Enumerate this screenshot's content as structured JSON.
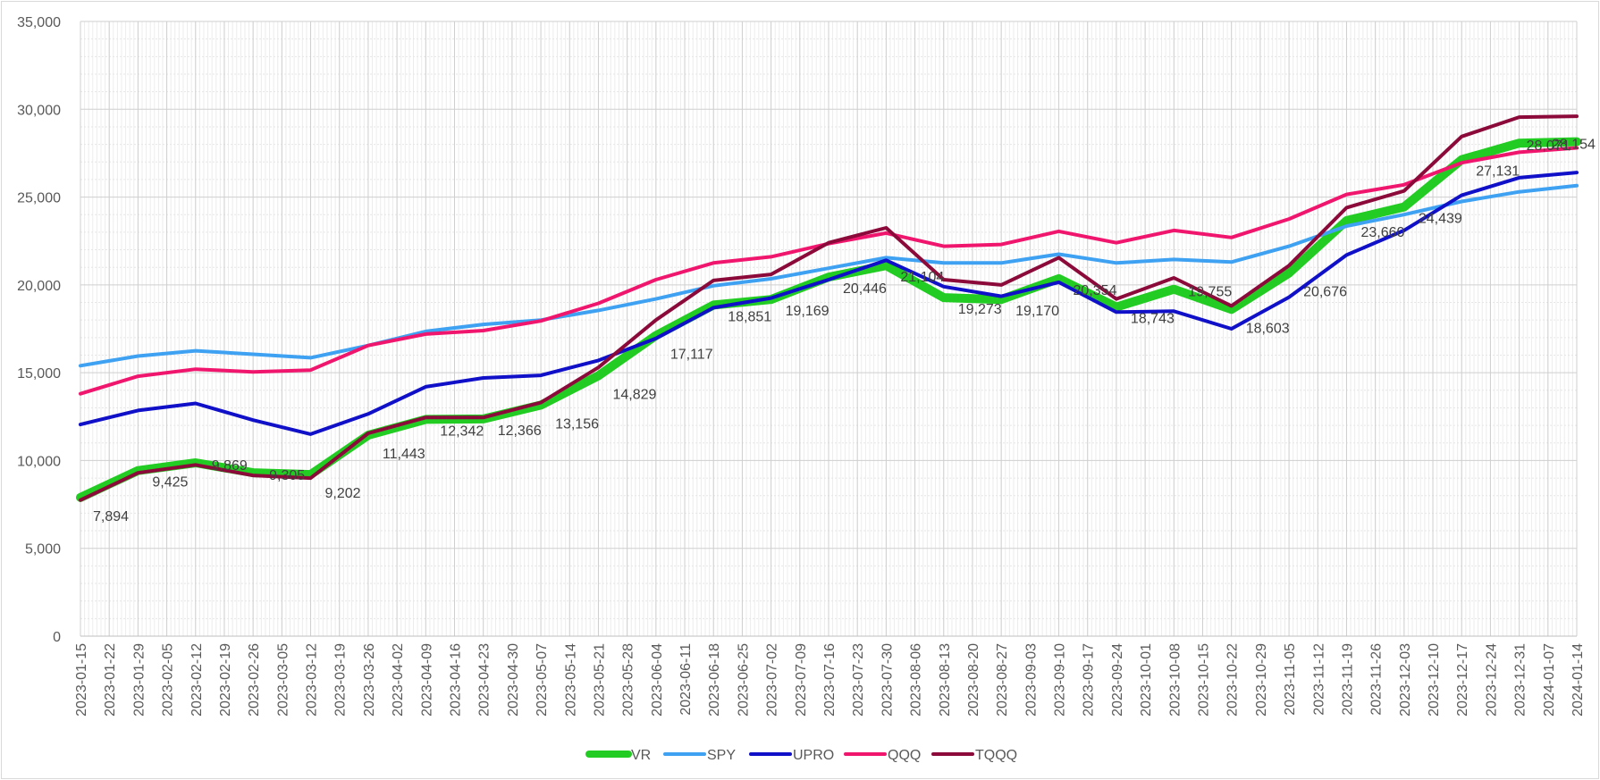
{
  "chart_data": {
    "type": "line",
    "title": "",
    "xlabel": "",
    "ylabel": "",
    "ylim": [
      0,
      35000
    ],
    "yticks": [
      "0",
      "5,000",
      "10,000",
      "15,000",
      "20,000",
      "25,000",
      "30,000",
      "35,000"
    ],
    "grid": true,
    "legend_position": "bottom",
    "x": [
      "2023-01-15",
      "2023-01-22",
      "2023-01-29",
      "2023-02-05",
      "2023-02-12",
      "2023-02-19",
      "2023-02-26",
      "2023-03-05",
      "2023-03-12",
      "2023-03-19",
      "2023-03-26",
      "2023-04-02",
      "2023-04-09",
      "2023-04-16",
      "2023-04-23",
      "2023-04-30",
      "2023-05-07",
      "2023-05-14",
      "2023-05-21",
      "2023-05-28",
      "2023-06-04",
      "2023-06-11",
      "2023-06-18",
      "2023-06-25",
      "2023-07-02",
      "2023-07-09",
      "2023-07-16",
      "2023-07-23",
      "2023-07-30",
      "2023-08-06",
      "2023-08-13",
      "2023-08-20",
      "2023-08-27",
      "2023-09-03",
      "2023-09-10",
      "2023-09-17",
      "2023-09-24",
      "2023-10-01",
      "2023-10-08",
      "2023-10-15",
      "2023-10-22",
      "2023-10-29",
      "2023-11-05",
      "2023-11-12",
      "2023-11-19",
      "2023-11-26",
      "2023-12-03",
      "2023-12-10",
      "2023-12-17",
      "2023-12-24",
      "2023-12-31",
      "2024-01-07",
      "2024-01-14"
    ],
    "series": [
      {
        "name": "VR",
        "color": "#22cc22",
        "width": 10,
        "points": [
          [
            "2023-01-15",
            7894
          ],
          [
            "2023-01-29",
            9425
          ],
          [
            "2023-02-12",
            9869
          ],
          [
            "2023-02-26",
            9305
          ],
          [
            "2023-03-12",
            9202
          ],
          [
            "2023-03-26",
            11443
          ],
          [
            "2023-04-09",
            12342
          ],
          [
            "2023-04-23",
            12366
          ],
          [
            "2023-05-07",
            13156
          ],
          [
            "2023-05-21",
            14829
          ],
          [
            "2023-06-04",
            17117
          ],
          [
            "2023-06-18",
            18851
          ],
          [
            "2023-07-02",
            19169
          ],
          [
            "2023-07-16",
            20446
          ],
          [
            "2023-07-30",
            21104
          ],
          [
            "2023-08-13",
            19273
          ],
          [
            "2023-08-27",
            19170
          ],
          [
            "2023-09-10",
            20354
          ],
          [
            "2023-09-24",
            18743
          ],
          [
            "2023-10-08",
            19755
          ],
          [
            "2023-10-22",
            18603
          ],
          [
            "2023-11-05",
            20676
          ],
          [
            "2023-11-19",
            23660
          ],
          [
            "2023-12-03",
            24439
          ],
          [
            "2023-12-17",
            27131
          ],
          [
            "2023-12-31",
            28071
          ],
          [
            "2024-01-14",
            28154
          ]
        ]
      },
      {
        "name": "SPY",
        "color": "#3fa1f2",
        "width": 4,
        "points": [
          [
            "2023-01-15",
            15400
          ],
          [
            "2023-01-29",
            15950
          ],
          [
            "2023-02-12",
            16250
          ],
          [
            "2023-02-26",
            16050
          ],
          [
            "2023-03-12",
            15850
          ],
          [
            "2023-03-26",
            16550
          ],
          [
            "2023-04-09",
            17350
          ],
          [
            "2023-04-23",
            17750
          ],
          [
            "2023-05-07",
            18000
          ],
          [
            "2023-05-21",
            18550
          ],
          [
            "2023-06-04",
            19200
          ],
          [
            "2023-06-18",
            19950
          ],
          [
            "2023-07-02",
            20350
          ],
          [
            "2023-07-16",
            20950
          ],
          [
            "2023-07-30",
            21550
          ],
          [
            "2023-08-13",
            21250
          ],
          [
            "2023-08-27",
            21250
          ],
          [
            "2023-09-10",
            21750
          ],
          [
            "2023-09-24",
            21250
          ],
          [
            "2023-10-08",
            21450
          ],
          [
            "2023-10-22",
            21300
          ],
          [
            "2023-11-05",
            22200
          ],
          [
            "2023-11-19",
            23350
          ],
          [
            "2023-12-03",
            24000
          ],
          [
            "2023-12-17",
            24750
          ],
          [
            "2023-12-31",
            25300
          ],
          [
            "2024-01-14",
            25650
          ]
        ]
      },
      {
        "name": "UPRO",
        "color": "#1010c8",
        "width": 4,
        "points": [
          [
            "2023-01-15",
            12050
          ],
          [
            "2023-01-29",
            12850
          ],
          [
            "2023-02-12",
            13250
          ],
          [
            "2023-02-26",
            12300
          ],
          [
            "2023-03-12",
            11500
          ],
          [
            "2023-03-26",
            12650
          ],
          [
            "2023-04-09",
            14200
          ],
          [
            "2023-04-23",
            14700
          ],
          [
            "2023-05-07",
            14850
          ],
          [
            "2023-05-21",
            15700
          ],
          [
            "2023-06-04",
            16950
          ],
          [
            "2023-06-18",
            18700
          ],
          [
            "2023-07-02",
            19250
          ],
          [
            "2023-07-16",
            20300
          ],
          [
            "2023-07-30",
            21400
          ],
          [
            "2023-08-13",
            19900
          ],
          [
            "2023-08-27",
            19350
          ],
          [
            "2023-09-10",
            20150
          ],
          [
            "2023-09-24",
            18450
          ],
          [
            "2023-10-08",
            18500
          ],
          [
            "2023-10-22",
            17500
          ],
          [
            "2023-11-05",
            19300
          ],
          [
            "2023-11-19",
            21700
          ],
          [
            "2023-12-03",
            23100
          ],
          [
            "2023-12-17",
            25100
          ],
          [
            "2023-12-31",
            26100
          ],
          [
            "2024-01-14",
            26400
          ]
        ]
      },
      {
        "name": "QQQ",
        "color": "#f0166e",
        "width": 4,
        "points": [
          [
            "2023-01-15",
            13800
          ],
          [
            "2023-01-29",
            14800
          ],
          [
            "2023-02-12",
            15200
          ],
          [
            "2023-02-26",
            15050
          ],
          [
            "2023-03-12",
            15150
          ],
          [
            "2023-03-26",
            16550
          ],
          [
            "2023-04-09",
            17200
          ],
          [
            "2023-04-23",
            17400
          ],
          [
            "2023-05-07",
            17950
          ],
          [
            "2023-05-21",
            18950
          ],
          [
            "2023-06-04",
            20300
          ],
          [
            "2023-06-18",
            21250
          ],
          [
            "2023-07-02",
            21600
          ],
          [
            "2023-07-16",
            22350
          ],
          [
            "2023-07-30",
            22950
          ],
          [
            "2023-08-13",
            22200
          ],
          [
            "2023-08-27",
            22300
          ],
          [
            "2023-09-10",
            23050
          ],
          [
            "2023-09-24",
            22400
          ],
          [
            "2023-10-08",
            23100
          ],
          [
            "2023-10-22",
            22700
          ],
          [
            "2023-11-05",
            23750
          ],
          [
            "2023-11-19",
            25150
          ],
          [
            "2023-12-03",
            25700
          ],
          [
            "2023-12-17",
            26950
          ],
          [
            "2023-12-31",
            27550
          ],
          [
            "2024-01-14",
            27800
          ]
        ]
      },
      {
        "name": "TQQQ",
        "color": "#8b0a3a",
        "width": 4,
        "points": [
          [
            "2023-01-15",
            7750
          ],
          [
            "2023-01-29",
            9300
          ],
          [
            "2023-02-12",
            9750
          ],
          [
            "2023-02-26",
            9150
          ],
          [
            "2023-03-12",
            9000
          ],
          [
            "2023-03-26",
            11550
          ],
          [
            "2023-04-09",
            12450
          ],
          [
            "2023-04-23",
            12450
          ],
          [
            "2023-05-07",
            13300
          ],
          [
            "2023-05-21",
            15300
          ],
          [
            "2023-06-04",
            18000
          ],
          [
            "2023-06-18",
            20250
          ],
          [
            "2023-07-02",
            20600
          ],
          [
            "2023-07-16",
            22400
          ],
          [
            "2023-07-30",
            23250
          ],
          [
            "2023-08-13",
            20300
          ],
          [
            "2023-08-27",
            20000
          ],
          [
            "2023-09-10",
            21550
          ],
          [
            "2023-09-24",
            19200
          ],
          [
            "2023-10-08",
            20400
          ],
          [
            "2023-10-22",
            18800
          ],
          [
            "2023-11-05",
            21100
          ],
          [
            "2023-11-19",
            24400
          ],
          [
            "2023-12-03",
            25350
          ],
          [
            "2023-12-17",
            28450
          ],
          [
            "2023-12-31",
            29550
          ],
          [
            "2024-01-14",
            29600
          ]
        ]
      }
    ],
    "data_labels": [
      {
        "x": "2023-01-15",
        "y": 7894,
        "text": "7,894",
        "dx": 14,
        "dy": 26
      },
      {
        "x": "2023-01-29",
        "y": 9425,
        "text": "9,425",
        "dx": 16,
        "dy": 18
      },
      {
        "x": "2023-02-12",
        "y": 9869,
        "text": "9,869",
        "dx": 18,
        "dy": 8
      },
      {
        "x": "2023-02-26",
        "y": 9305,
        "text": "9,305",
        "dx": 18,
        "dy": 8
      },
      {
        "x": "2023-03-12",
        "y": 9202,
        "text": "9,202",
        "dx": 16,
        "dy": 26
      },
      {
        "x": "2023-03-26",
        "y": 11443,
        "text": "11,443",
        "dx": 16,
        "dy": 26
      },
      {
        "x": "2023-04-09",
        "y": 12342,
        "text": "12,342",
        "dx": 16,
        "dy": 18
      },
      {
        "x": "2023-04-23",
        "y": 12366,
        "text": "12,366",
        "dx": 16,
        "dy": 18
      },
      {
        "x": "2023-05-07",
        "y": 13156,
        "text": "13,156",
        "dx": 16,
        "dy": 26
      },
      {
        "x": "2023-05-21",
        "y": 14829,
        "text": "14,829",
        "dx": 16,
        "dy": 26
      },
      {
        "x": "2023-06-04",
        "y": 17117,
        "text": "17,117",
        "dx": 16,
        "dy": 26
      },
      {
        "x": "2023-06-18",
        "y": 18851,
        "text": "18,851",
        "dx": 16,
        "dy": 18
      },
      {
        "x": "2023-07-02",
        "y": 19169,
        "text": "19,169",
        "dx": 16,
        "dy": 18
      },
      {
        "x": "2023-07-16",
        "y": 20446,
        "text": "20,446",
        "dx": 16,
        "dy": 18
      },
      {
        "x": "2023-07-30",
        "y": 21104,
        "text": "21,104",
        "dx": 16,
        "dy": 18
      },
      {
        "x": "2023-08-13",
        "y": 19273,
        "text": "19,273",
        "dx": 16,
        "dy": 18
      },
      {
        "x": "2023-08-27",
        "y": 19170,
        "text": "19,170",
        "dx": 16,
        "dy": 18
      },
      {
        "x": "2023-09-10",
        "y": 20354,
        "text": "20,354",
        "dx": 16,
        "dy": 18
      },
      {
        "x": "2023-09-24",
        "y": 18743,
        "text": "18,743",
        "dx": 16,
        "dy": 18
      },
      {
        "x": "2023-10-08",
        "y": 19755,
        "text": "19,755",
        "dx": 16,
        "dy": 8
      },
      {
        "x": "2023-10-22",
        "y": 18603,
        "text": "18,603",
        "dx": 16,
        "dy": 26
      },
      {
        "x": "2023-11-05",
        "y": 20676,
        "text": "20,676",
        "dx": 16,
        "dy": 26
      },
      {
        "x": "2023-11-19",
        "y": 23660,
        "text": "23,660",
        "dx": 16,
        "dy": 18
      },
      {
        "x": "2023-12-03",
        "y": 24439,
        "text": "24,439",
        "dx": 16,
        "dy": 18
      },
      {
        "x": "2023-12-17",
        "y": 27131,
        "text": "27,131",
        "dx": 16,
        "dy": 18
      },
      {
        "x": "2023-12-31",
        "y": 28071,
        "text": "28,071",
        "dx": 8,
        "dy": 8
      },
      {
        "x": "2024-01-14",
        "y": 28154,
        "text": "28,154",
        "dx": -28,
        "dy": 8
      }
    ]
  }
}
